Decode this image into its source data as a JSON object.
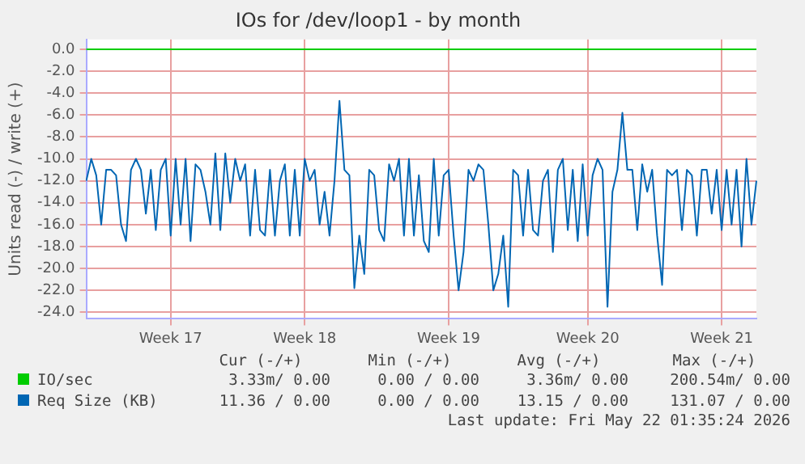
{
  "chart_data": {
    "type": "line",
    "title": "IOs for /dev/loop1 - by month",
    "ylabel": "Units read (-) / write (+)",
    "categories": [
      null,
      null,
      null,
      null,
      null,
      null,
      null,
      null,
      null,
      null,
      null,
      null,
      null,
      null,
      null,
      null,
      null,
      "Week 17",
      null,
      null,
      null,
      null,
      null,
      null,
      null,
      null,
      null,
      null,
      null,
      null,
      null,
      null,
      null,
      null,
      null,
      null,
      null,
      null,
      null,
      null,
      null,
      null,
      null,
      null,
      "Week 18",
      null,
      null,
      null,
      null,
      null,
      null,
      null,
      null,
      null,
      null,
      null,
      null,
      null,
      null,
      null,
      null,
      null,
      null,
      null,
      null,
      null,
      null,
      null,
      null,
      null,
      null,
      null,
      null,
      "Week 19",
      null,
      null,
      null,
      null,
      null,
      null,
      null,
      null,
      null,
      null,
      null,
      null,
      null,
      null,
      null,
      null,
      null,
      null,
      null,
      null,
      null,
      null,
      null,
      null,
      null,
      null,
      null,
      "Week 20",
      null,
      null,
      null,
      null,
      null,
      null,
      null,
      null,
      null,
      null,
      null,
      null,
      null,
      null,
      null,
      null,
      null,
      null,
      null,
      null,
      null,
      null,
      null,
      null,
      null,
      null,
      "Week 21",
      null,
      null,
      null,
      null,
      null,
      null,
      null
    ],
    "ylim": [
      -24.6,
      0.9
    ],
    "yticks": [
      {
        "value": 0,
        "label": "0.0"
      },
      {
        "value": -2,
        "label": "-2.0"
      },
      {
        "value": -4,
        "label": "-4.0"
      },
      {
        "value": -6,
        "label": "-6.0"
      },
      {
        "value": -8,
        "label": "-8.0"
      },
      {
        "value": -10,
        "label": "-10.0"
      },
      {
        "value": -12,
        "label": "-12.0"
      },
      {
        "value": -14,
        "label": "-14.0"
      },
      {
        "value": -16,
        "label": "-16.0"
      },
      {
        "value": -18,
        "label": "-18.0"
      },
      {
        "value": -20,
        "label": "-20.0"
      },
      {
        "value": -22,
        "label": "-22.0"
      },
      {
        "value": -24,
        "label": "-24.0"
      }
    ],
    "grid": true,
    "legend": "bottom",
    "marker": "none",
    "line_style": "solid",
    "series": [
      {
        "name": "IO/sec",
        "color": "#00cc00",
        "values": [
          0,
          0,
          0,
          0,
          0,
          0,
          0,
          0,
          0,
          0,
          0,
          0,
          0,
          0,
          0,
          0,
          0,
          0,
          0,
          0,
          0,
          0,
          0,
          0,
          0,
          0,
          0,
          0,
          0,
          0,
          0,
          0,
          0,
          0,
          0,
          0,
          0,
          0,
          0,
          0,
          0,
          0,
          0,
          0,
          0,
          0,
          0,
          0,
          0,
          0,
          0,
          0,
          0,
          0,
          0,
          0,
          0,
          0,
          0,
          0,
          0,
          0,
          0,
          0,
          0,
          0,
          0,
          0,
          0,
          0,
          0,
          0,
          0,
          0,
          0,
          0,
          0,
          0,
          0,
          0,
          0,
          0,
          0,
          0,
          0,
          0,
          0,
          0,
          0,
          0,
          0,
          0,
          0,
          0,
          0,
          0,
          0,
          0,
          0,
          0,
          0,
          0,
          0,
          0,
          0,
          0,
          0,
          0,
          0,
          0,
          0,
          0,
          0,
          0,
          0,
          0,
          0,
          0,
          0,
          0,
          0,
          0,
          0,
          0,
          0,
          0,
          0,
          0,
          0,
          0,
          0,
          0,
          0,
          0,
          0,
          0
        ]
      },
      {
        "name": "Req Size (KB)",
        "color": "#0066b3",
        "values": [
          -12,
          -10,
          -11.5,
          -16,
          -11,
          -11,
          -11.5,
          -16,
          -17.5,
          -11,
          -10,
          -11,
          -15,
          -11,
          -16.5,
          -11,
          -10,
          -17,
          -10,
          -16,
          -10,
          -17.5,
          -10.5,
          -11,
          -13,
          -16,
          -9.5,
          -16.5,
          -9.5,
          -14,
          -10,
          -12,
          -10.5,
          -17,
          -11,
          -16.5,
          -17,
          -11,
          -17,
          -12,
          -10.5,
          -17,
          -11,
          -17,
          -10,
          -12,
          -11,
          -16,
          -13,
          -17,
          -12,
          -4.7,
          -11,
          -11.5,
          -21.8,
          -17,
          -20.5,
          -11,
          -11.5,
          -16.5,
          -17.5,
          -10.5,
          -12,
          -10,
          -17,
          -10,
          -17,
          -11.5,
          -17.5,
          -18.5,
          -10,
          -17,
          -11.5,
          -11,
          -17,
          -22,
          -18.5,
          -11,
          -12,
          -10.5,
          -11,
          -16,
          -22,
          -20.5,
          -17,
          -23.5,
          -11,
          -11.5,
          -17,
          -11,
          -16.5,
          -17,
          -12,
          -11,
          -18.5,
          -11,
          -10,
          -16.5,
          -11,
          -17.5,
          -10.5,
          -17,
          -11.5,
          -10,
          -11,
          -23.5,
          -13,
          -11,
          -5.8,
          -11,
          -11,
          -16.5,
          -10.5,
          -13,
          -11,
          -17,
          -21.5,
          -11,
          -11.5,
          -11,
          -16.5,
          -11,
          -11.5,
          -17,
          -11,
          -11,
          -15,
          -11,
          -16.5,
          -11,
          -16,
          -11,
          -18,
          -10,
          -16,
          -12
        ]
      }
    ],
    "annotations": [
      "Cur (-/+)",
      "Min (-/+)",
      "Avg (-/+)",
      "Max (-/+)",
      "3.33m/ 0.00",
      "0.00 / 0.00",
      "3.36m/ 0.00",
      "200.54m/ 0.00",
      "11.36 / 0.00",
      "0.00 / 0.00",
      "13.15 / 0.00",
      "131.07 / 0.00",
      "Last update: Fri May 22 01:35:24 2026"
    ]
  }
}
